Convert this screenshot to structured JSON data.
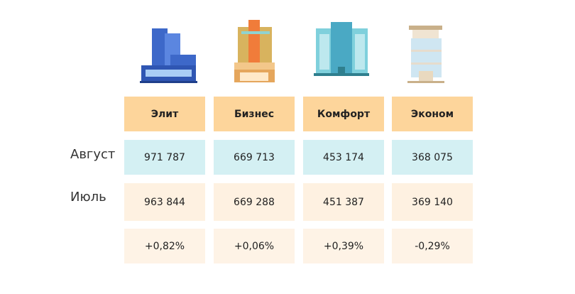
{
  "table": {
    "header": [
      "Элит",
      "Бизнес",
      "Комфорт",
      "Эконом"
    ],
    "rows": [
      {
        "label": "Август",
        "cells": [
          "971 787",
          "669 713",
          "453 174",
          "368 075"
        ]
      },
      {
        "label": "Июль",
        "cells": [
          "963 844",
          "669 288",
          "451 387",
          "369 140"
        ]
      }
    ],
    "change": [
      "+0,82%",
      "+0,06%",
      "+0,39%",
      "-0,29%"
    ]
  }
}
